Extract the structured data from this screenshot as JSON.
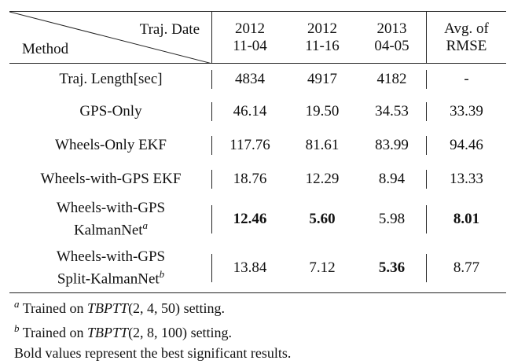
{
  "table": {
    "header": {
      "corner_top": "Traj. Date",
      "corner_bottom": "Method",
      "columns": [
        [
          "2012",
          "11-04"
        ],
        [
          "2012",
          "11-16"
        ],
        [
          "2013",
          "04-05"
        ],
        [
          "Avg. of",
          "RMSE"
        ]
      ]
    },
    "rows": [
      {
        "method": [
          "Traj. Length[sec]"
        ],
        "cells": [
          "4834",
          "4917",
          "4182",
          "-"
        ],
        "bold": []
      },
      {
        "method": [
          "GPS-Only"
        ],
        "cells": [
          "46.14",
          "19.50",
          "34.53",
          "33.39"
        ],
        "bold": []
      },
      {
        "method": [
          "Wheels-Only EKF"
        ],
        "cells": [
          "117.76",
          "81.61",
          "83.99",
          "94.46"
        ],
        "bold": []
      },
      {
        "method": [
          "Wheels-with-GPS EKF"
        ],
        "cells": [
          "18.76",
          "12.29",
          "8.94",
          "13.33"
        ],
        "bold": []
      },
      {
        "method": [
          "Wheels-with-GPS",
          "KalmanNet"
        ],
        "sup": "a",
        "cells": [
          "12.46",
          "5.60",
          "5.98",
          "8.01"
        ],
        "bold": [
          0,
          1,
          3
        ]
      },
      {
        "method": [
          "Wheels-with-GPS",
          "Split-KalmanNet"
        ],
        "sup": "b",
        "cells": [
          "13.84",
          "7.12",
          "5.36",
          "8.77"
        ],
        "bold": [
          2
        ]
      }
    ],
    "notes": [
      {
        "mark": "a",
        "pre": "Trained on",
        "italic": "TBPTT",
        "args": "(2, 4, 50)",
        "post": "setting."
      },
      {
        "mark": "b",
        "pre": "Trained on",
        "italic": "TBPTT",
        "args": "(2, 8, 100)",
        "post": "setting."
      },
      {
        "text": "Bold values represent the best significant results."
      }
    ]
  }
}
